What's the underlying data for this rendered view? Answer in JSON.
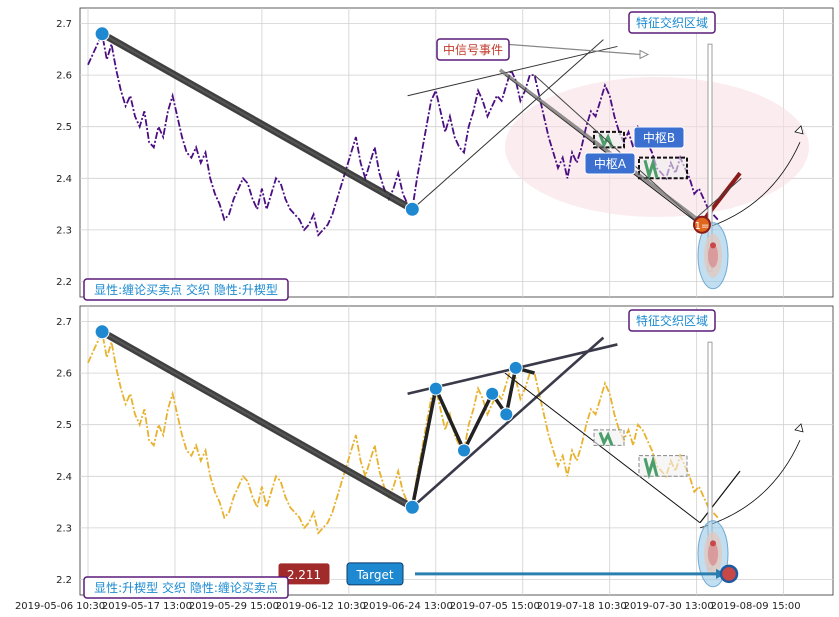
{
  "chart_data": {
    "type": "line",
    "x_tick_labels": [
      "2019-05-06 10:30",
      "2019-05-17 13:00",
      "2019-05-29 15:00",
      "2019-06-12 10:30",
      "2019-06-24 13:00",
      "2019-07-05 15:00",
      "2019-07-18 10:30",
      "2019-07-30 13:00",
      "2019-08-09 15:00"
    ],
    "ylim": [
      2.17,
      2.73
    ],
    "y_ticks": [
      "2.2",
      "2.3",
      "2.4",
      "2.5",
      "2.6",
      "2.7"
    ],
    "grid": true,
    "panels": [
      {
        "series_color": "#4b0d82",
        "caption": "显性:缠论买卖点 交织 隐性:升楔型",
        "zone_label": "特征交织区域",
        "event_label": "中信号事件",
        "pivot_a_label": "中枢A",
        "pivot_b_label": "中枢B",
        "signal_badge": "1=",
        "trend_points": [
          [
            3,
            2.68
          ],
          [
            69,
            2.34
          ]
        ],
        "wedge_upper": [
          [
            68,
            2.56
          ],
          [
            102,
            2.64
          ]
        ],
        "wedge_lower": [
          [
            69,
            2.34
          ],
          [
            102,
            2.63
          ]
        ],
        "zigzag": [
          [
            95,
            2.6
          ],
          [
            129,
            2.32
          ],
          [
            139,
            2.4
          ]
        ]
      },
      {
        "series_color": "#e9b22e",
        "caption": "显性:升楔型 交织 隐性:缠论买卖点",
        "zone_label": "特征交织区域",
        "price_badge": "2.211",
        "target_label": "Target",
        "target_value": 2.211,
        "trend_points": [
          [
            3,
            2.68
          ],
          [
            69,
            2.34
          ]
        ],
        "wedge_points": [
          [
            69,
            2.34
          ],
          [
            74,
            2.57
          ],
          [
            80,
            2.45
          ],
          [
            86,
            2.56
          ],
          [
            89,
            2.52
          ],
          [
            91,
            2.61
          ],
          [
            95,
            2.6
          ]
        ],
        "wedge_upper": [
          [
            68,
            2.56
          ],
          [
            102,
            2.64
          ]
        ],
        "wedge_lower": [
          [
            69,
            2.34
          ],
          [
            102,
            2.63
          ]
        ]
      }
    ],
    "price_series": [
      2.62,
      2.64,
      2.66,
      2.68,
      2.63,
      2.66,
      2.61,
      2.57,
      2.54,
      2.56,
      2.52,
      2.5,
      2.53,
      2.47,
      2.46,
      2.5,
      2.48,
      2.53,
      2.56,
      2.52,
      2.48,
      2.45,
      2.44,
      2.46,
      2.43,
      2.45,
      2.4,
      2.37,
      2.35,
      2.32,
      2.33,
      2.36,
      2.38,
      2.4,
      2.39,
      2.36,
      2.34,
      2.38,
      2.34,
      2.37,
      2.4,
      2.39,
      2.36,
      2.34,
      2.33,
      2.32,
      2.3,
      2.31,
      2.33,
      2.29,
      2.3,
      2.31,
      2.33,
      2.36,
      2.39,
      2.42,
      2.45,
      2.48,
      2.43,
      2.4,
      2.43,
      2.46,
      2.41,
      2.38,
      2.36,
      2.38,
      2.41,
      2.37,
      2.35,
      2.34,
      2.4,
      2.45,
      2.5,
      2.55,
      2.57,
      2.53,
      2.49,
      2.52,
      2.48,
      2.46,
      2.45,
      2.5,
      2.53,
      2.57,
      2.55,
      2.52,
      2.54,
      2.56,
      2.55,
      2.58,
      2.61,
      2.59,
      2.55,
      2.57,
      2.6,
      2.6,
      2.56,
      2.52,
      2.48,
      2.45,
      2.42,
      2.44,
      2.4,
      2.45,
      2.43,
      2.46,
      2.5,
      2.53,
      2.52,
      2.55,
      2.58,
      2.56,
      2.52,
      2.49,
      2.47,
      2.49,
      2.46,
      2.5,
      2.49,
      2.47,
      2.45,
      2.42,
      2.41,
      2.4,
      2.43,
      2.41,
      2.44,
      2.42,
      2.4,
      2.37,
      2.38,
      2.36,
      2.34,
      2.33,
      2.32
    ]
  }
}
